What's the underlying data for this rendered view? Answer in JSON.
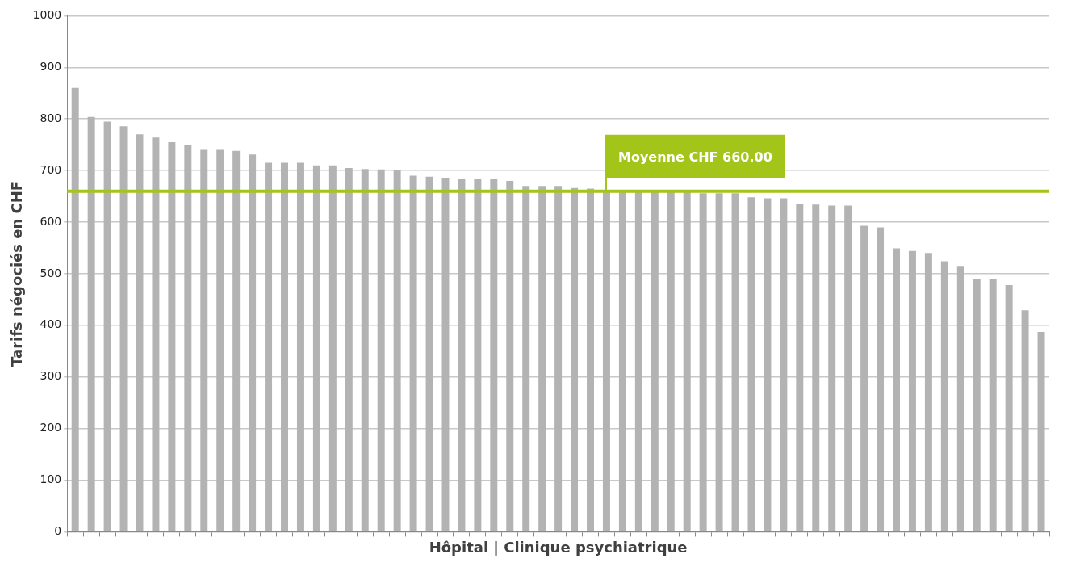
{
  "chart_data": {
    "type": "bar",
    "xlabel": "Hôpital | Clinique psychiatrique",
    "ylabel": "Tarifs négociés en CHF",
    "categories": [
      null,
      null,
      null,
      null,
      null,
      null,
      null,
      null,
      null,
      null,
      null,
      null,
      null,
      null,
      null,
      null,
      null,
      null,
      null,
      null,
      null,
      null,
      null,
      null,
      null,
      null,
      null,
      null,
      null,
      null,
      null,
      null,
      null,
      null,
      null,
      null,
      null,
      null,
      null,
      null,
      null,
      null,
      null,
      null,
      null,
      null,
      null,
      null,
      null,
      null,
      null,
      null,
      null,
      null,
      null,
      null,
      null,
      null,
      null,
      null,
      null
    ],
    "values": [
      860,
      804,
      795,
      786,
      770,
      764,
      755,
      750,
      740,
      740,
      738,
      731,
      715,
      715,
      715,
      710,
      710,
      705,
      703,
      702,
      700,
      690,
      688,
      685,
      683,
      683,
      683,
      680,
      670,
      670,
      670,
      666,
      665,
      659,
      659,
      659,
      659,
      659,
      659,
      656,
      656,
      656,
      648,
      646,
      646,
      636,
      634,
      632,
      632,
      593,
      590,
      549,
      544,
      540,
      524,
      515,
      489,
      489,
      478,
      429,
      387
    ],
    "color": "#b3b3b3",
    "ylim": [
      0,
      1000
    ],
    "yticks": [
      0,
      100,
      200,
      300,
      400,
      500,
      600,
      700,
      800,
      900,
      1000
    ],
    "grid": "y",
    "ref_lines": [
      {
        "axis": "y",
        "value": 660,
        "label": "Moyenne CHF 660.00",
        "color": "#a3c51a"
      }
    ]
  }
}
